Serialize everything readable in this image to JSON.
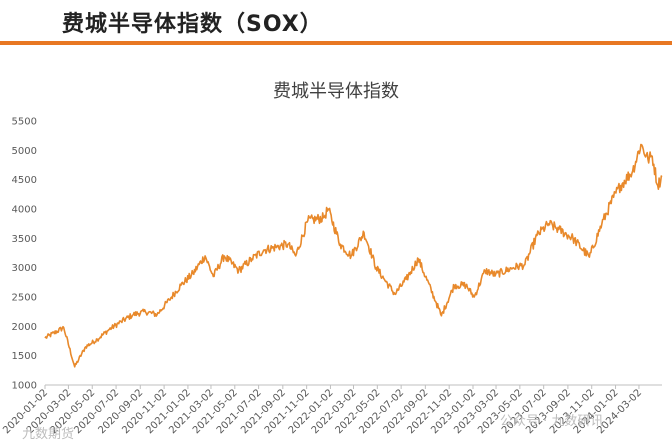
{
  "header": {
    "title": "费城半导体指数（SOX）",
    "accent_color": "#e87722"
  },
  "watermarks": {
    "left": "九数期货",
    "right": "公众号 · 九数研讯"
  },
  "chart_data": {
    "type": "line",
    "title": "费城半导体指数",
    "series": [
      {
        "color": "#e8892b"
      }
    ],
    "ylim": [
      1000,
      5500
    ],
    "yticks": [
      1000,
      1500,
      2000,
      2500,
      3000,
      3500,
      4000,
      4500,
      5000,
      5500
    ],
    "xlim": [
      "2020-01-02",
      "2024-04-30"
    ],
    "xticks": [
      "2020-01-02",
      "2020-03-02",
      "2020-05-02",
      "2020-07-02",
      "2020-09-02",
      "2020-11-02",
      "2021-01-02",
      "2021-03-02",
      "2021-05-02",
      "2021-07-02",
      "2021-09-02",
      "2021-11-02",
      "2022-01-02",
      "2022-03-02",
      "2022-05-02",
      "2022-07-02",
      "2022-09-02",
      "2022-11-02",
      "2023-01-02",
      "2023-03-02",
      "2023-05-02",
      "2023-07-02",
      "2023-09-02",
      "2023-11-02",
      "2024-01-02",
      "2024-03-02"
    ],
    "grid": false,
    "points": [
      [
        "2020-01-02",
        1800
      ],
      [
        "2020-02-19",
        1980
      ],
      [
        "2020-03-18",
        1310
      ],
      [
        "2020-04-15",
        1650
      ],
      [
        "2020-05-15",
        1780
      ],
      [
        "2020-06-15",
        1950
      ],
      [
        "2020-07-15",
        2080
      ],
      [
        "2020-08-15",
        2200
      ],
      [
        "2020-09-15",
        2250
      ],
      [
        "2020-10-15",
        2200
      ],
      [
        "2020-11-15",
        2450
      ],
      [
        "2020-12-15",
        2700
      ],
      [
        "2021-01-15",
        2900
      ],
      [
        "2021-02-15",
        3200
      ],
      [
        "2021-03-08",
        2850
      ],
      [
        "2021-04-05",
        3200
      ],
      [
        "2021-05-12",
        2950
      ],
      [
        "2021-06-15",
        3150
      ],
      [
        "2021-07-15",
        3300
      ],
      [
        "2021-08-15",
        3350
      ],
      [
        "2021-09-15",
        3400
      ],
      [
        "2021-10-05",
        3200
      ],
      [
        "2021-11-05",
        3800
      ],
      [
        "2021-12-15",
        3850
      ],
      [
        "2021-12-27",
        4000
      ],
      [
        "2022-01-27",
        3400
      ],
      [
        "2022-02-24",
        3200
      ],
      [
        "2022-03-29",
        3600
      ],
      [
        "2022-04-29",
        3000
      ],
      [
        "2022-05-20",
        2800
      ],
      [
        "2022-06-16",
        2550
      ],
      [
        "2022-07-15",
        2800
      ],
      [
        "2022-08-15",
        3150
      ],
      [
        "2022-09-30",
        2400
      ],
      [
        "2022-10-13",
        2180
      ],
      [
        "2022-11-15",
        2700
      ],
      [
        "2022-12-15",
        2700
      ],
      [
        "2023-01-05",
        2500
      ],
      [
        "2023-02-02",
        2950
      ],
      [
        "2023-03-01",
        2880
      ],
      [
        "2023-04-15",
        3000
      ],
      [
        "2023-05-15",
        3050
      ],
      [
        "2023-06-15",
        3550
      ],
      [
        "2023-07-15",
        3750
      ],
      [
        "2023-08-10",
        3650
      ],
      [
        "2023-09-15",
        3500
      ],
      [
        "2023-10-27",
        3180
      ],
      [
        "2023-11-28",
        3750
      ],
      [
        "2023-12-28",
        4200
      ],
      [
        "2024-01-15",
        4400
      ],
      [
        "2024-02-15",
        4650
      ],
      [
        "2024-03-07",
        5100
      ],
      [
        "2024-03-25",
        4850
      ],
      [
        "2024-04-05",
        4900
      ],
      [
        "2024-04-19",
        4400
      ],
      [
        "2024-04-30",
        4550
      ]
    ]
  }
}
